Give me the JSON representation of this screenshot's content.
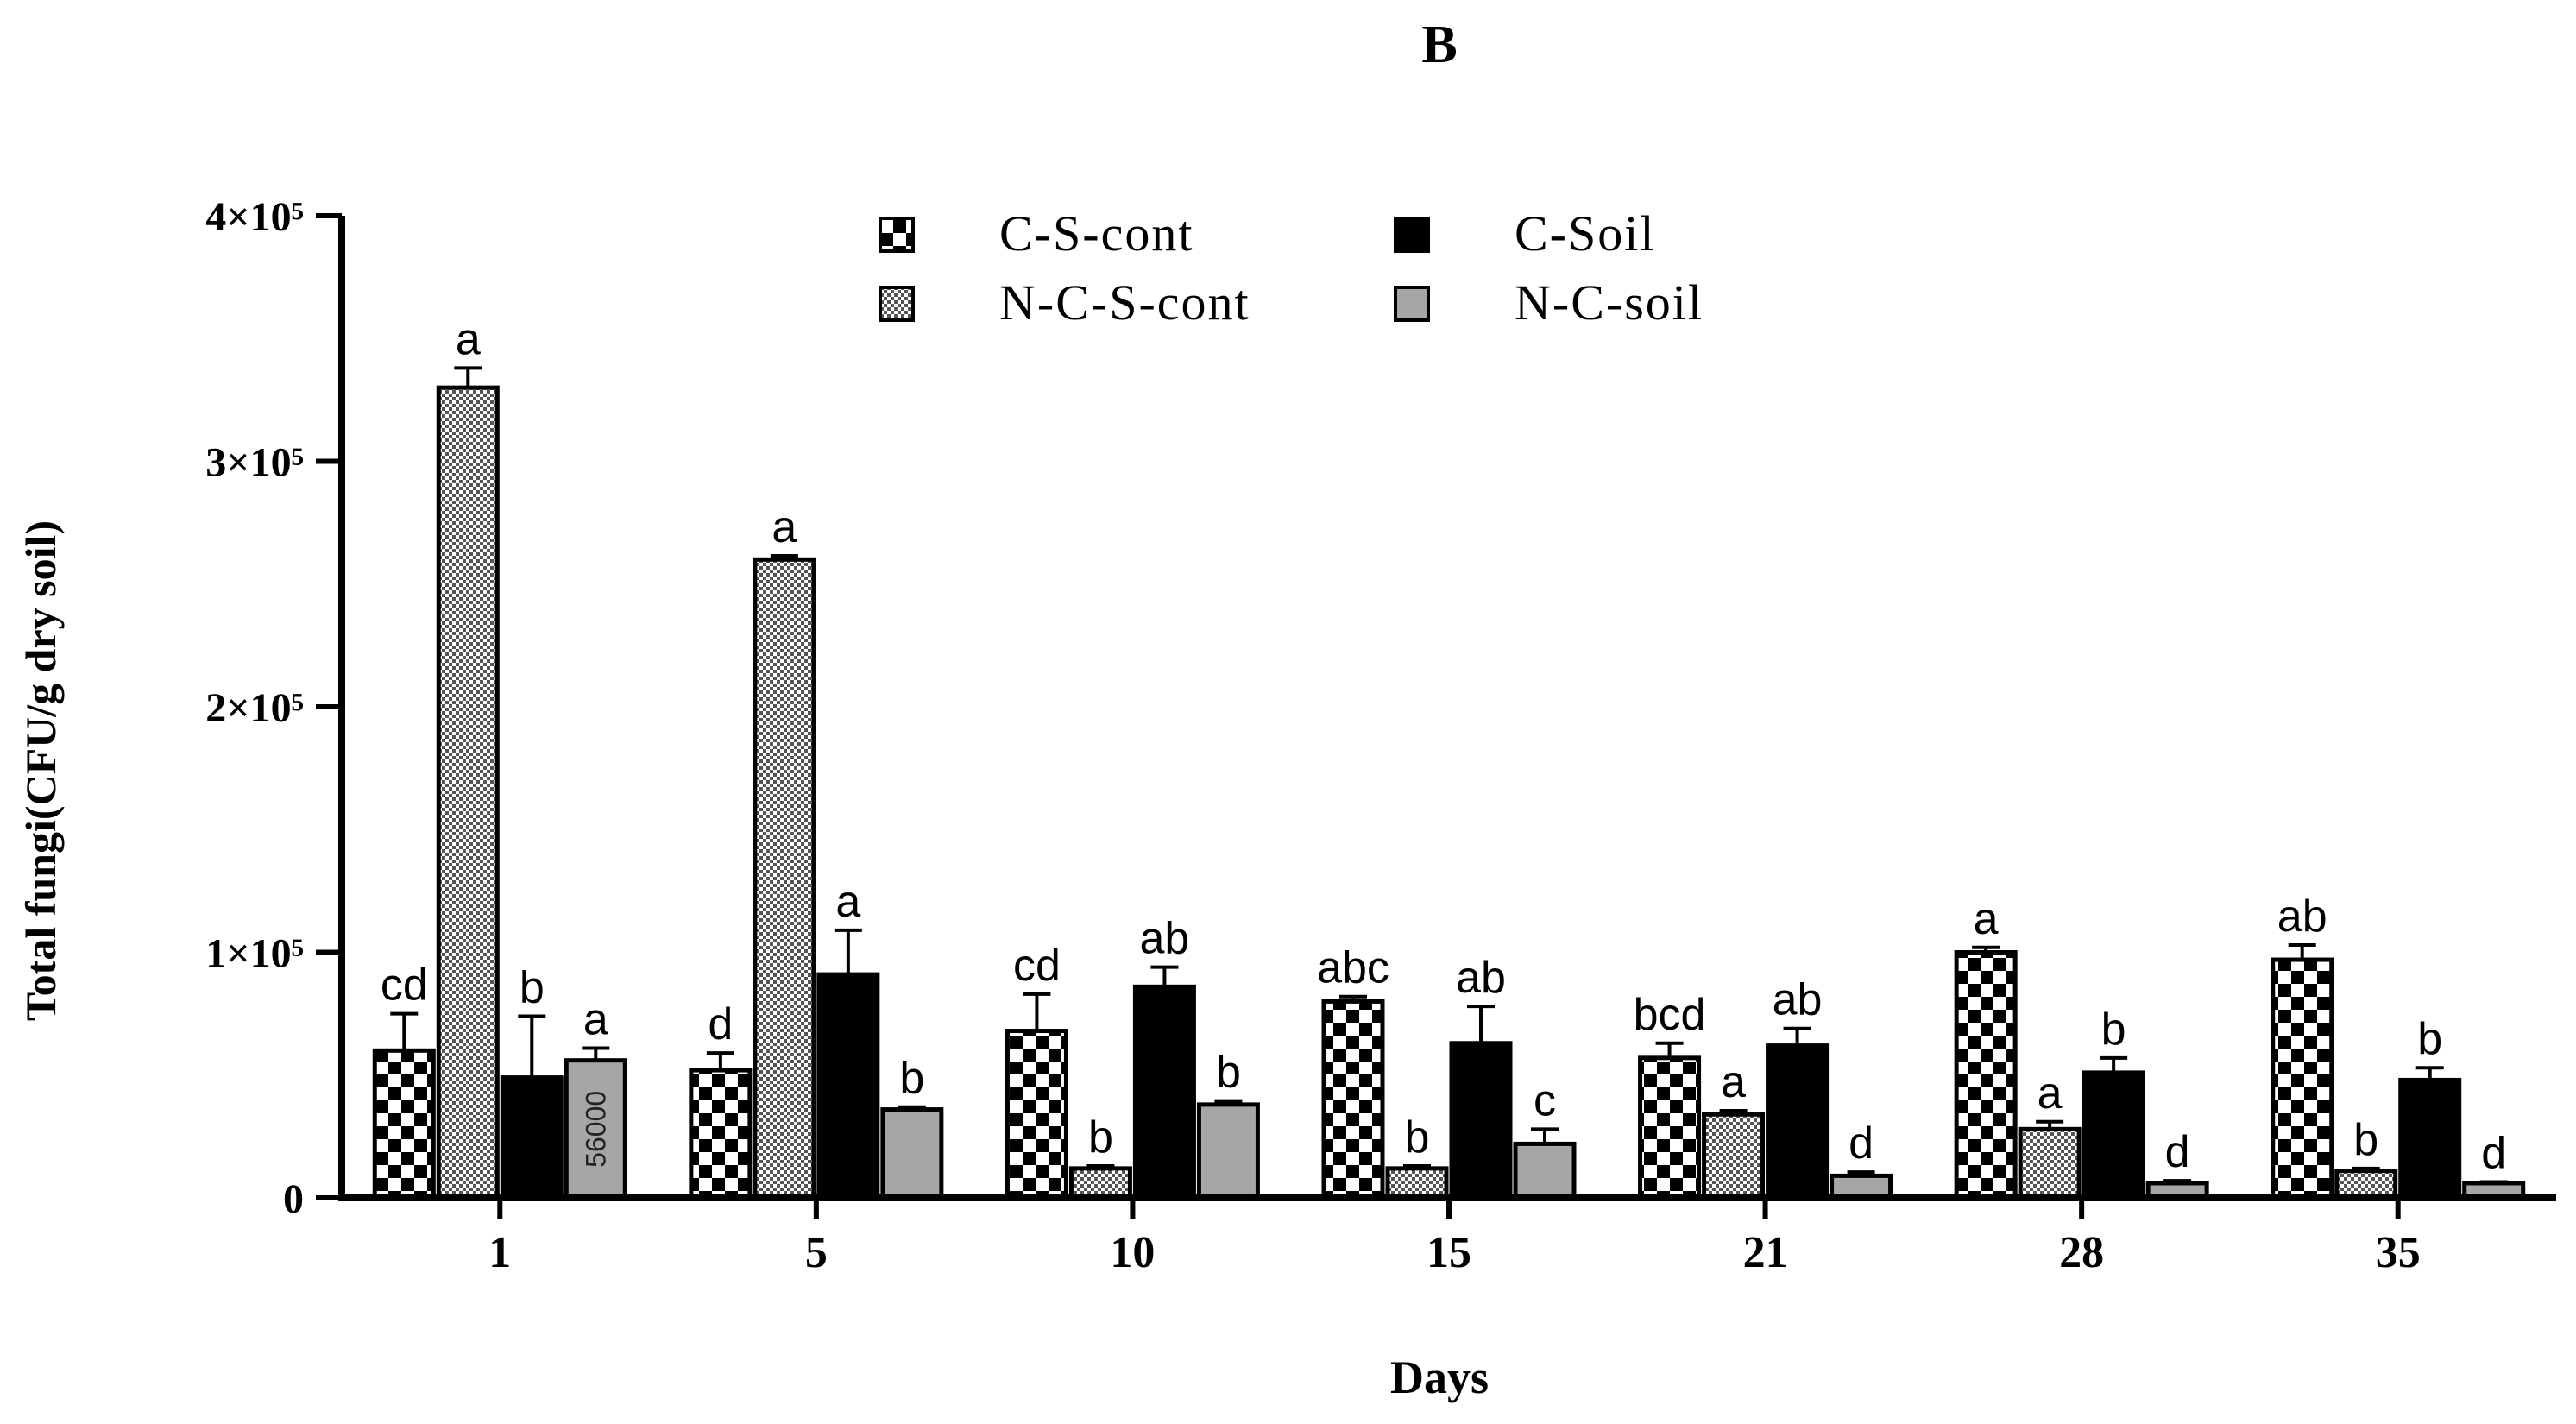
{
  "chart_data": {
    "type": "bar",
    "panel_label": "B",
    "title": "",
    "xlabel": "Days",
    "ylabel": "Total fungi(CFU/g dry soil)",
    "ylim": [
      0,
      400000
    ],
    "yticks": [
      {
        "value": 0,
        "label": "0"
      },
      {
        "value": 100000,
        "label": "1×10⁵"
      },
      {
        "value": 200000,
        "label": "2×10⁵"
      },
      {
        "value": 300000,
        "label": "3×10⁵"
      },
      {
        "value": 400000,
        "label": "4×10⁵"
      }
    ],
    "categories": [
      "1",
      "5",
      "10",
      "15",
      "21",
      "28",
      "35"
    ],
    "legend_position": "top-center",
    "series": [
      {
        "name": "C-S-cont",
        "pattern": "checker",
        "values": [
          60000,
          52000,
          68000,
          80000,
          57000,
          100000,
          97000
        ],
        "errors": [
          15000,
          7000,
          15000,
          2000,
          6000,
          2000,
          6000
        ],
        "letters": [
          "cd",
          "d",
          "cd",
          "abc",
          "bcd",
          "a",
          "ab"
        ]
      },
      {
        "name": "N-C-S-cont",
        "pattern": "fine-check",
        "values": [
          330000,
          260000,
          12000,
          12000,
          34000,
          28000,
          11000
        ],
        "errors": [
          8000,
          1500,
          1000,
          1000,
          1500,
          3000,
          1000
        ],
        "letters": [
          "a",
          "a",
          "b",
          "b",
          "a",
          "a",
          "b"
        ]
      },
      {
        "name": "C-Soil",
        "pattern": "solid-black",
        "values": [
          49000,
          91000,
          86000,
          63000,
          62000,
          51000,
          48000
        ],
        "errors": [
          25000,
          18000,
          8000,
          15000,
          7000,
          6000,
          5000
        ],
        "letters": [
          "b",
          "a",
          "ab",
          "ab",
          "ab",
          "b",
          "b"
        ]
      },
      {
        "name": "N-C-soil",
        "pattern": "solid-gray",
        "values": [
          56000,
          36000,
          38000,
          22000,
          9000,
          6000,
          6000
        ],
        "errors": [
          5000,
          1000,
          1500,
          6000,
          1500,
          1000,
          500
        ],
        "letters": [
          "a",
          "b",
          "b",
          "c",
          "d",
          "d",
          "d"
        ]
      }
    ],
    "bar_value_labels": [
      "56000"
    ]
  },
  "colors": {
    "axis": "#000000",
    "gray_bar": "#a6a6a6",
    "pattern_dark": "#000000",
    "pattern_light": "#ffffff"
  }
}
